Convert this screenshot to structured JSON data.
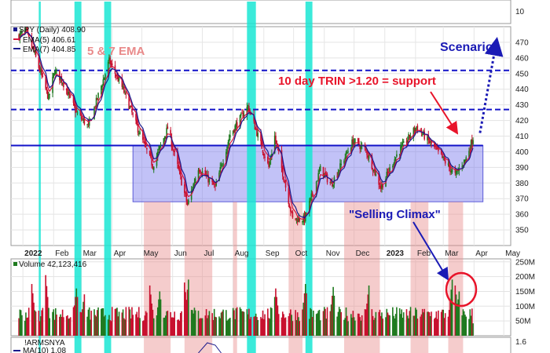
{
  "chart_data": {
    "type": "candlestick",
    "price_panel": {
      "symbol_label": "SPY (Daily) 408.90",
      "legend": [
        {
          "label": "EMA(5) 406.61",
          "color": "#d6143c"
        },
        {
          "label": "EMA(7) 404.85",
          "color": "#1a1a8c"
        }
      ],
      "ylim": [
        340,
        480
      ],
      "y_ticks": [
        350,
        360,
        370,
        380,
        390,
        400,
        410,
        420,
        430,
        440,
        450,
        460,
        470
      ],
      "top_tick": "10",
      "price_path": [
        [
          "2021-12-28",
          474
        ],
        [
          "2022-01-04",
          477
        ],
        [
          "2022-01-13",
          462
        ],
        [
          "2022-01-27",
          434
        ],
        [
          "2022-02-02",
          452
        ],
        [
          "2022-02-10",
          445
        ],
        [
          "2022-02-24",
          425
        ],
        [
          "2022-03-08",
          416
        ],
        [
          "2022-03-29",
          458
        ],
        [
          "2022-04-12",
          440
        ],
        [
          "2022-04-26",
          416
        ],
        [
          "2022-05-12",
          391
        ],
        [
          "2022-05-27",
          415
        ],
        [
          "2022-06-16",
          366
        ],
        [
          "2022-06-27",
          390
        ],
        [
          "2022-07-14",
          377
        ],
        [
          "2022-07-29",
          411
        ],
        [
          "2022-08-16",
          429
        ],
        [
          "2022-09-06",
          390
        ],
        [
          "2022-09-12",
          410
        ],
        [
          "2022-09-30",
          357
        ],
        [
          "2022-10-12",
          357
        ],
        [
          "2022-10-28",
          389
        ],
        [
          "2022-11-08",
          379
        ],
        [
          "2022-11-30",
          407
        ],
        [
          "2022-12-13",
          401
        ],
        [
          "2022-12-28",
          377
        ],
        [
          "2023-01-13",
          398
        ],
        [
          "2023-02-02",
          416
        ],
        [
          "2023-02-23",
          400
        ],
        [
          "2023-03-13",
          385
        ],
        [
          "2023-03-24",
          396
        ],
        [
          "2023-03-31",
          409
        ]
      ],
      "support_line": 404,
      "dashed_levels": [
        427,
        452
      ],
      "range_box": {
        "x_start": "2022-04-22",
        "x_end": "2023-04-10",
        "y_low": 368,
        "y_high": 404
      },
      "scenario_arrow": {
        "from": [
          "2023-04-07",
          412
        ],
        "to": [
          "2023-04-24",
          472
        ]
      }
    },
    "x_axis": {
      "start": "2021-12-20",
      "end": "2023-05-08",
      "labels": [
        {
          "date": "2022-01-01",
          "text": "2022",
          "bold": true
        },
        {
          "date": "2022-02-01",
          "text": "Feb"
        },
        {
          "date": "2022-03-01",
          "text": "Mar"
        },
        {
          "date": "2022-04-01",
          "text": "Apr"
        },
        {
          "date": "2022-05-01",
          "text": "May"
        },
        {
          "date": "2022-06-01",
          "text": "Jun"
        },
        {
          "date": "2022-07-01",
          "text": "Jul"
        },
        {
          "date": "2022-08-01",
          "text": "Aug"
        },
        {
          "date": "2022-09-01",
          "text": "Sep"
        },
        {
          "date": "2022-10-01",
          "text": "Oct"
        },
        {
          "date": "2022-11-01",
          "text": "Nov"
        },
        {
          "date": "2022-12-01",
          "text": "Dec"
        },
        {
          "date": "2023-01-01",
          "text": "2023",
          "bold": true
        },
        {
          "date": "2023-02-01",
          "text": "Feb"
        },
        {
          "date": "2023-03-01",
          "text": "Mar"
        },
        {
          "date": "2023-04-01",
          "text": "Apr"
        },
        {
          "date": "2023-05-01",
          "text": "May"
        }
      ]
    },
    "cyan_bands": [
      [
        "2022-01-17",
        "2022-01-19"
      ],
      [
        "2022-02-22",
        "2022-03-01"
      ],
      [
        "2022-03-24",
        "2022-03-31"
      ],
      [
        "2022-08-15",
        "2022-08-24"
      ],
      [
        "2022-10-13",
        "2022-10-20"
      ]
    ],
    "pink_bands": [
      [
        "2022-05-03",
        "2022-05-30"
      ],
      [
        "2022-06-13",
        "2022-07-11"
      ],
      [
        "2022-08-01",
        "2022-08-05"
      ],
      [
        "2022-09-26",
        "2022-10-10"
      ],
      [
        "2022-11-21",
        "2022-12-27"
      ],
      [
        "2023-01-27",
        "2023-02-14"
      ],
      [
        "2023-03-06",
        "2023-03-21"
      ]
    ],
    "annotations": [
      {
        "text": "5 & 7 EMA",
        "style": "pink"
      },
      {
        "text": "Scenario",
        "style": "blue"
      },
      {
        "text": "10 day TRIN >1.20 = support",
        "style": "red"
      },
      {
        "text": "\"Selling Climax\"",
        "style": "blue"
      }
    ],
    "volume_panel": {
      "label": "Volume 42,123,416",
      "ylim": [
        0,
        260
      ],
      "y_ticks": [
        {
          "value": 50,
          "text": "50M"
        },
        {
          "value": 100,
          "text": "100M"
        },
        {
          "value": 150,
          "text": "150M"
        },
        {
          "value": 200,
          "text": "200M"
        },
        {
          "value": 250,
          "text": "250M"
        }
      ],
      "baseline_level": 82,
      "spikes": [
        [
          "2022-01-10",
          175
        ],
        [
          "2022-01-24",
          205
        ],
        [
          "2022-02-24",
          160
        ],
        [
          "2022-03-04",
          140
        ],
        [
          "2022-05-09",
          170
        ],
        [
          "2022-05-19",
          150
        ],
        [
          "2022-06-13",
          180
        ],
        [
          "2022-06-17",
          190
        ],
        [
          "2022-09-13",
          160
        ],
        [
          "2022-10-13",
          175
        ],
        [
          "2022-11-10",
          165
        ],
        [
          "2022-12-16",
          170
        ],
        [
          "2023-03-10",
          190
        ],
        [
          "2023-03-13",
          170
        ],
        [
          "2023-03-17",
          150
        ]
      ],
      "last_bar_value": 42
    },
    "indicator_panel": {
      "symbol_label": "!ARMSNYA",
      "ma_label": "MA(10) 1.08",
      "tick": "1.6"
    }
  }
}
